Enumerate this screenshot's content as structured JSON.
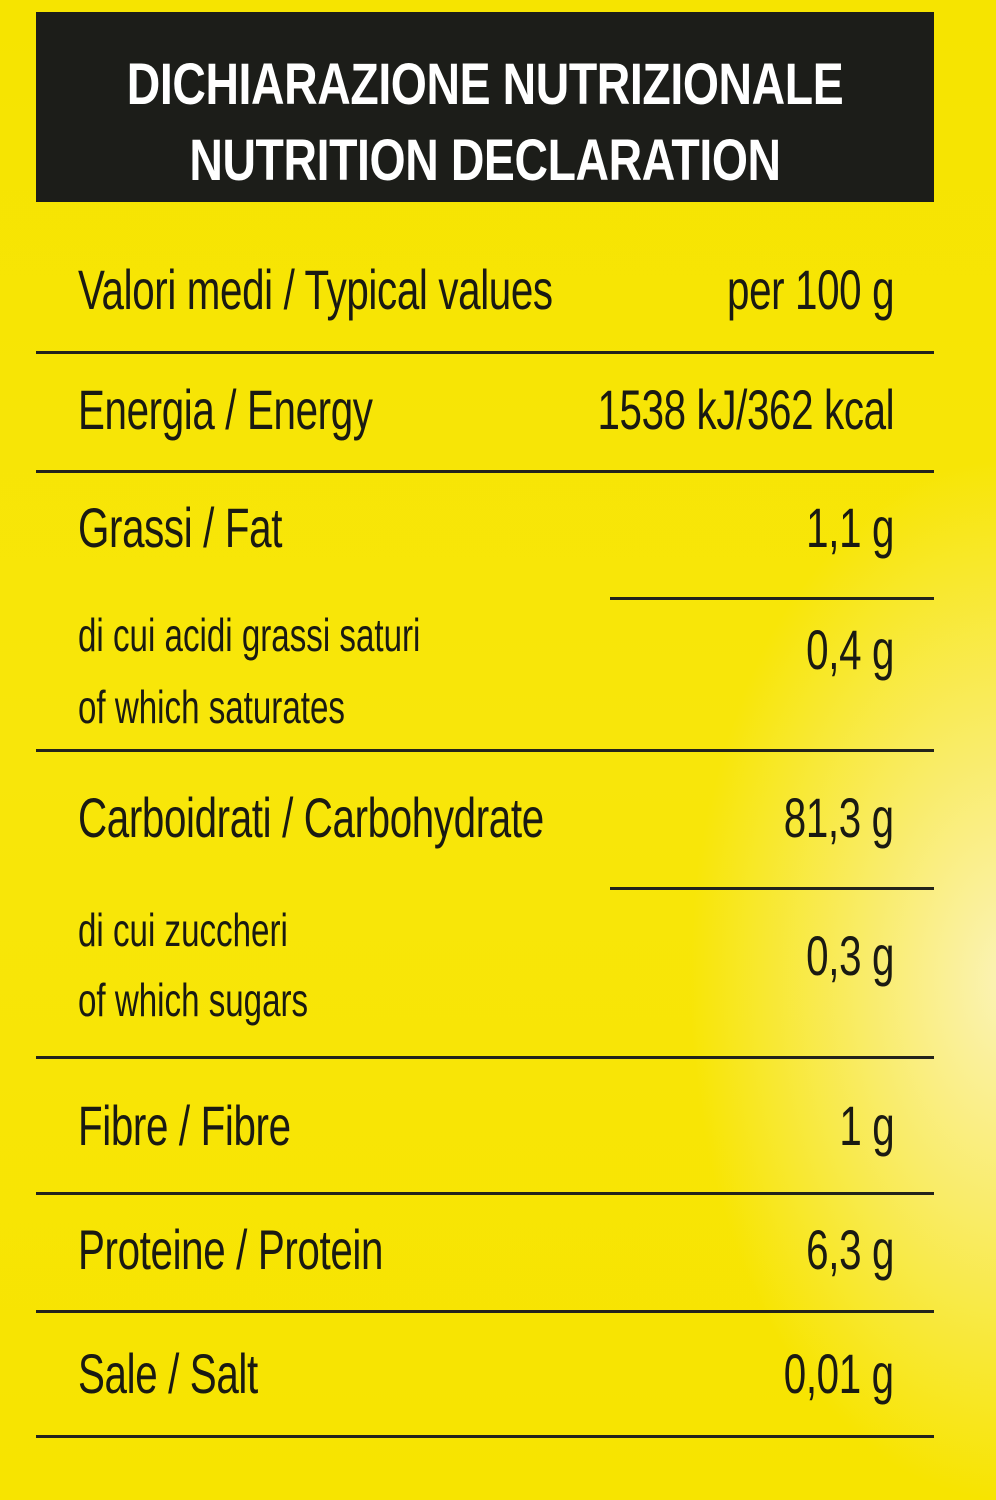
{
  "header": {
    "title_it": "DICHIARAZIONE NUTRIZIONALE",
    "title_en": "NUTRITION DECLARATION"
  },
  "table": {
    "column_label": "Valori medi / Typical values",
    "column_unit": "per 100 g",
    "rows": [
      {
        "label": "Energia / Energy",
        "value": "1538 kJ/362 kcal"
      },
      {
        "label": "Grassi / Fat",
        "value": "1,1 g"
      },
      {
        "label_it": "di cui acidi grassi saturi",
        "label_en": "of which saturates",
        "value": "0,4 g"
      },
      {
        "label": "Carboidrati / Carbohydrate",
        "value": "81,3 g"
      },
      {
        "label_it": "di cui zuccheri",
        "label_en": "of which sugars",
        "value": "0,3 g"
      },
      {
        "label": "Fibre / Fibre",
        "value": "1 g"
      },
      {
        "label": "Proteine / Protein",
        "value": "6,3 g"
      },
      {
        "label": "Sale / Salt",
        "value": "0,01 g"
      }
    ]
  },
  "colors": {
    "background": "#f7e400",
    "header_bg": "#1c1d19",
    "header_text": "#ffffff",
    "text": "#1a1a12"
  }
}
